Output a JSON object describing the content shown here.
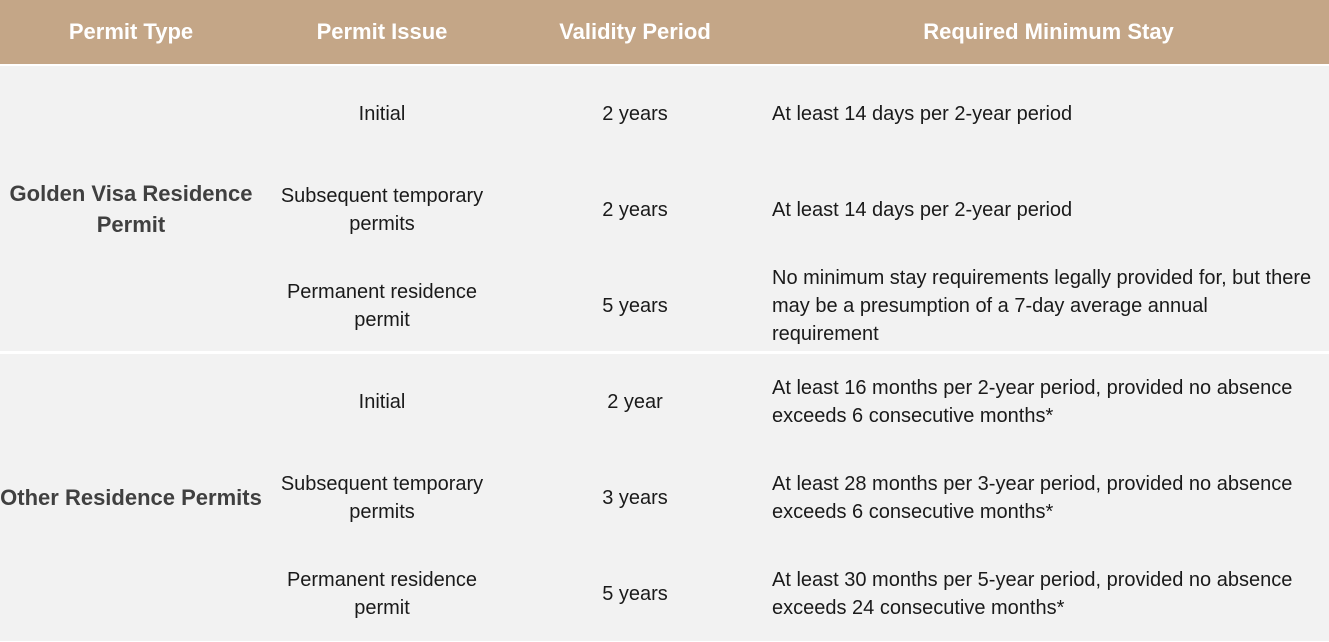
{
  "headers": {
    "permit_type": "Permit Type",
    "permit_issue": "Permit Issue",
    "validity_period": "Validity Period",
    "required_minimum_stay": "Required Minimum Stay"
  },
  "groups": [
    {
      "permit_type": "Golden Visa Residence Permit",
      "rows": [
        {
          "issue": "Initial",
          "validity": "2 years",
          "stay": "At least 14 days per 2-year period"
        },
        {
          "issue": "Subsequent temporary permits",
          "validity": "2 years",
          "stay": "At least 14 days per 2-year period"
        },
        {
          "issue": "Permanent residence permit",
          "validity": "5 years",
          "stay": "No minimum stay requirements legally provided for, but there may be a presumption of a 7-day average annual requirement"
        }
      ]
    },
    {
      "permit_type": "Other Residence Permits",
      "rows": [
        {
          "issue": "Initial",
          "validity": "2 year",
          "stay": "At least 16 months per 2-year period, provided no absence exceeds 6 consecutive months*"
        },
        {
          "issue": "Subsequent temporary permits",
          "validity": "3 years",
          "stay": "At least 28 months per 3-year period, provided no absence exceeds 6 consecutive months*"
        },
        {
          "issue": "Permanent residence permit",
          "validity": "5 years",
          "stay": "At least 30 months per 5-year period, provided no absence exceeds 24 consecutive months*"
        }
      ]
    }
  ],
  "colors": {
    "header_background": "#c4a687",
    "header_text": "#ffffff",
    "row_background": "#f2f2f2",
    "permit_type_text": "#404040",
    "body_text": "#1a1a1a"
  }
}
